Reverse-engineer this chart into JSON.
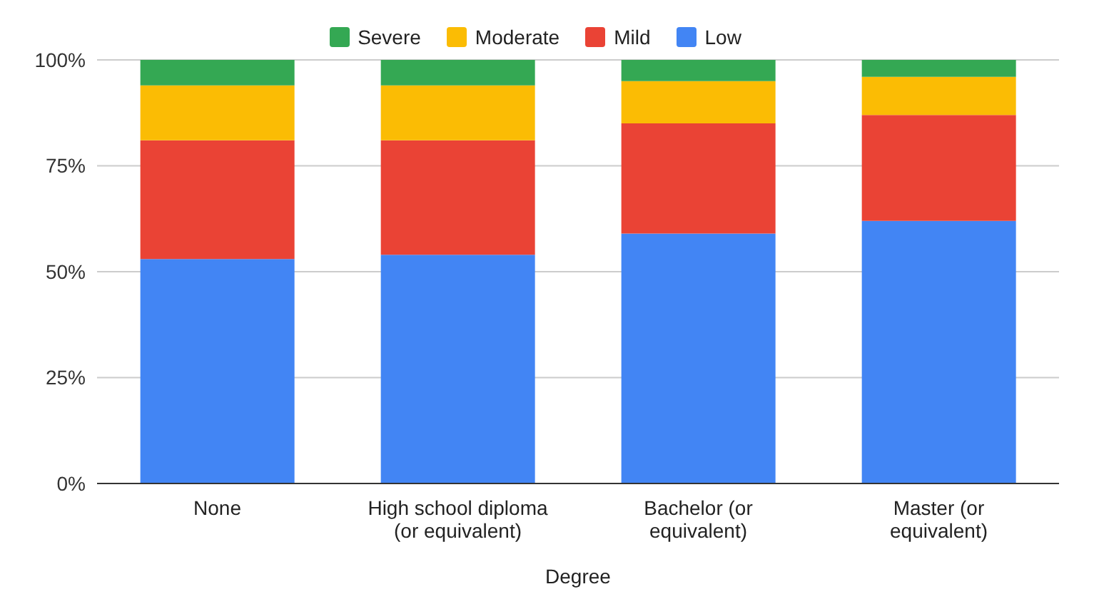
{
  "chart_data": {
    "type": "bar",
    "stacked": true,
    "xlabel": "Degree",
    "categories": [
      "None",
      "High school diploma (or equivalent)",
      "Bachelor (or equivalent)",
      "Master (or equivalent)"
    ],
    "series": [
      {
        "name": "Low",
        "color": "#4285f4",
        "values": [
          53,
          54,
          59,
          62
        ]
      },
      {
        "name": "Mild",
        "color": "#ea4335",
        "values": [
          28,
          27,
          26,
          25
        ]
      },
      {
        "name": "Moderate",
        "color": "#fbbc04",
        "values": [
          13,
          13,
          10,
          9
        ]
      },
      {
        "name": "Severe",
        "color": "#34a853",
        "values": [
          6,
          6,
          5,
          4
        ]
      }
    ],
    "ylim": [
      0,
      100
    ],
    "yticks": [
      {
        "value": 0,
        "label": "0%"
      },
      {
        "value": 25,
        "label": "25%"
      },
      {
        "value": 50,
        "label": "50%"
      },
      {
        "value": 75,
        "label": "75%"
      },
      {
        "value": 100,
        "label": "100%"
      }
    ],
    "grid": "y",
    "legend": "top"
  }
}
